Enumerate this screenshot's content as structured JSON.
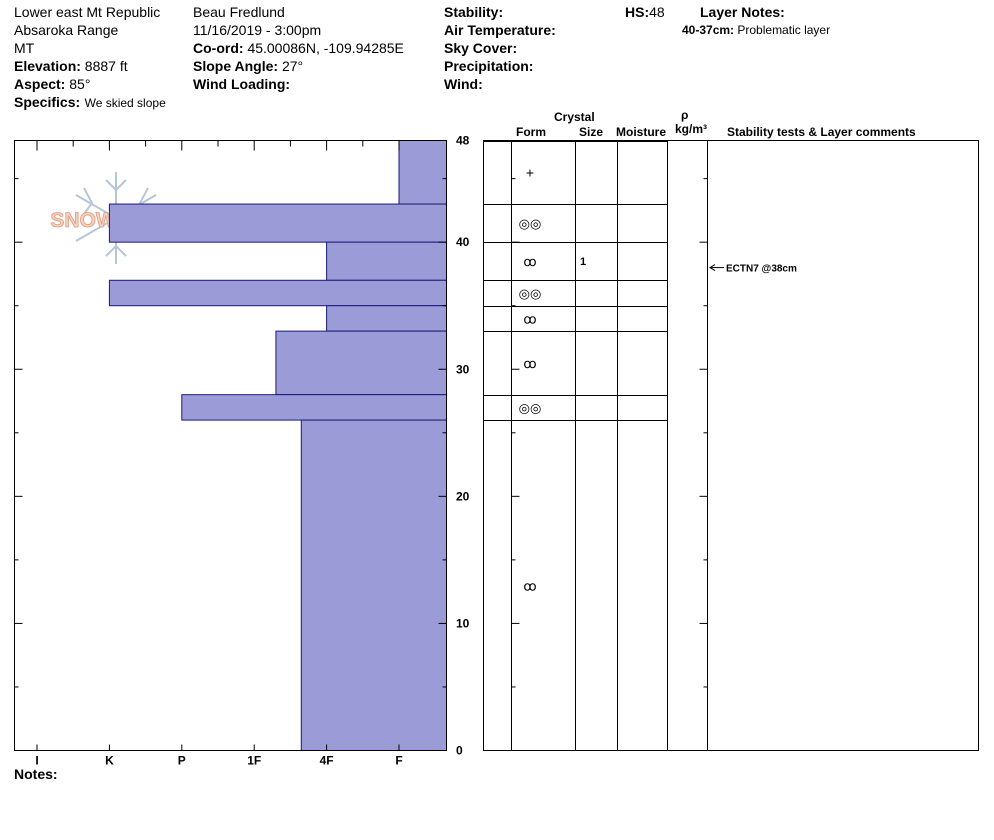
{
  "header": {
    "location": "Lower east Mt Republic",
    "range": "Absaroka Range",
    "state": "MT",
    "elevation_label": "Elevation:",
    "elevation_value": "8887 ft",
    "aspect_label": "Aspect:",
    "aspect_value": "85°",
    "specifics_label": "Specifics:",
    "specifics_value": "We skied slope",
    "observer": "Beau  Fredlund",
    "datetime": "11/16/2019 - 3:00pm",
    "coord_label": "Co-ord:",
    "coord_value": "45.00086N, -109.94285E",
    "slope_label": "Slope Angle:",
    "slope_value": "27°",
    "wind_loading_label": "Wind Loading:",
    "stability_label": "Stability:",
    "air_temp_label": "Air Temperature:",
    "sky_cover_label": "Sky Cover:",
    "precip_label": "Precipitation:",
    "wind_label": "Wind:",
    "hs_label": "HS:",
    "hs_value": "48",
    "layer_notes_label": "Layer Notes:",
    "layer_note_range": "40-37cm:",
    "layer_note_text": "Problematic layer"
  },
  "logo": {
    "text": "SNOWPILOT"
  },
  "notes_label": "Notes:",
  "table_headers": {
    "crystal": "Crystal",
    "form": "Form",
    "size": "Size",
    "moisture": "Moisture",
    "rho": "ρ",
    "density_unit": "kg/m³",
    "comments": "Stability tests & Layer comments"
  },
  "colors": {
    "bar_fill": "#9b9bd7",
    "bar_stroke": "#1a1a7a"
  },
  "chart_data": {
    "type": "bar",
    "orientation": "horizontal",
    "x_categories": [
      "I",
      "K",
      "P",
      "1F",
      "4F",
      "F"
    ],
    "y_range": [
      0,
      48
    ],
    "y_ticks": [
      0,
      10,
      20,
      30,
      40,
      48
    ],
    "y_unit": "cm",
    "layers": [
      {
        "top": 48,
        "bottom": 43,
        "hardness": "F"
      },
      {
        "top": 43,
        "bottom": 40,
        "hardness": "K"
      },
      {
        "top": 40,
        "bottom": 37,
        "hardness": "4F"
      },
      {
        "top": 37,
        "bottom": 35,
        "hardness": "K"
      },
      {
        "top": 35,
        "bottom": 33,
        "hardness": "4F"
      },
      {
        "top": 33,
        "bottom": 28,
        "hardness": "1F+"
      },
      {
        "top": 28,
        "bottom": 26,
        "hardness": "P-"
      },
      {
        "top": 26,
        "bottom": 0,
        "hardness": "4F+"
      }
    ],
    "hardness_positions": {
      "I": 0,
      "K": 1,
      "P": 2,
      "1F": 3,
      "4F": 4,
      "F": 5,
      "1F+": 3.3,
      "P-": 2.0,
      "4F+": 3.65
    },
    "crystal_forms": [
      {
        "depth": 45.5,
        "symbol": "+"
      },
      {
        "depth": 41.5,
        "symbol": "◎◎"
      },
      {
        "depth": 38.5,
        "symbol": "ꝏ"
      },
      {
        "depth": 36,
        "symbol": "◎◎"
      },
      {
        "depth": 34,
        "symbol": "ꝏ"
      },
      {
        "depth": 30.5,
        "symbol": "ꝏ"
      },
      {
        "depth": 27,
        "symbol": "◎◎"
      },
      {
        "depth": 13,
        "symbol": "ꝏ"
      }
    ],
    "crystal_sizes": [
      {
        "depth": 38.5,
        "value": "1"
      }
    ],
    "stability_tests": [
      {
        "depth": 38,
        "text": "ECTN7 @38cm"
      }
    ]
  }
}
